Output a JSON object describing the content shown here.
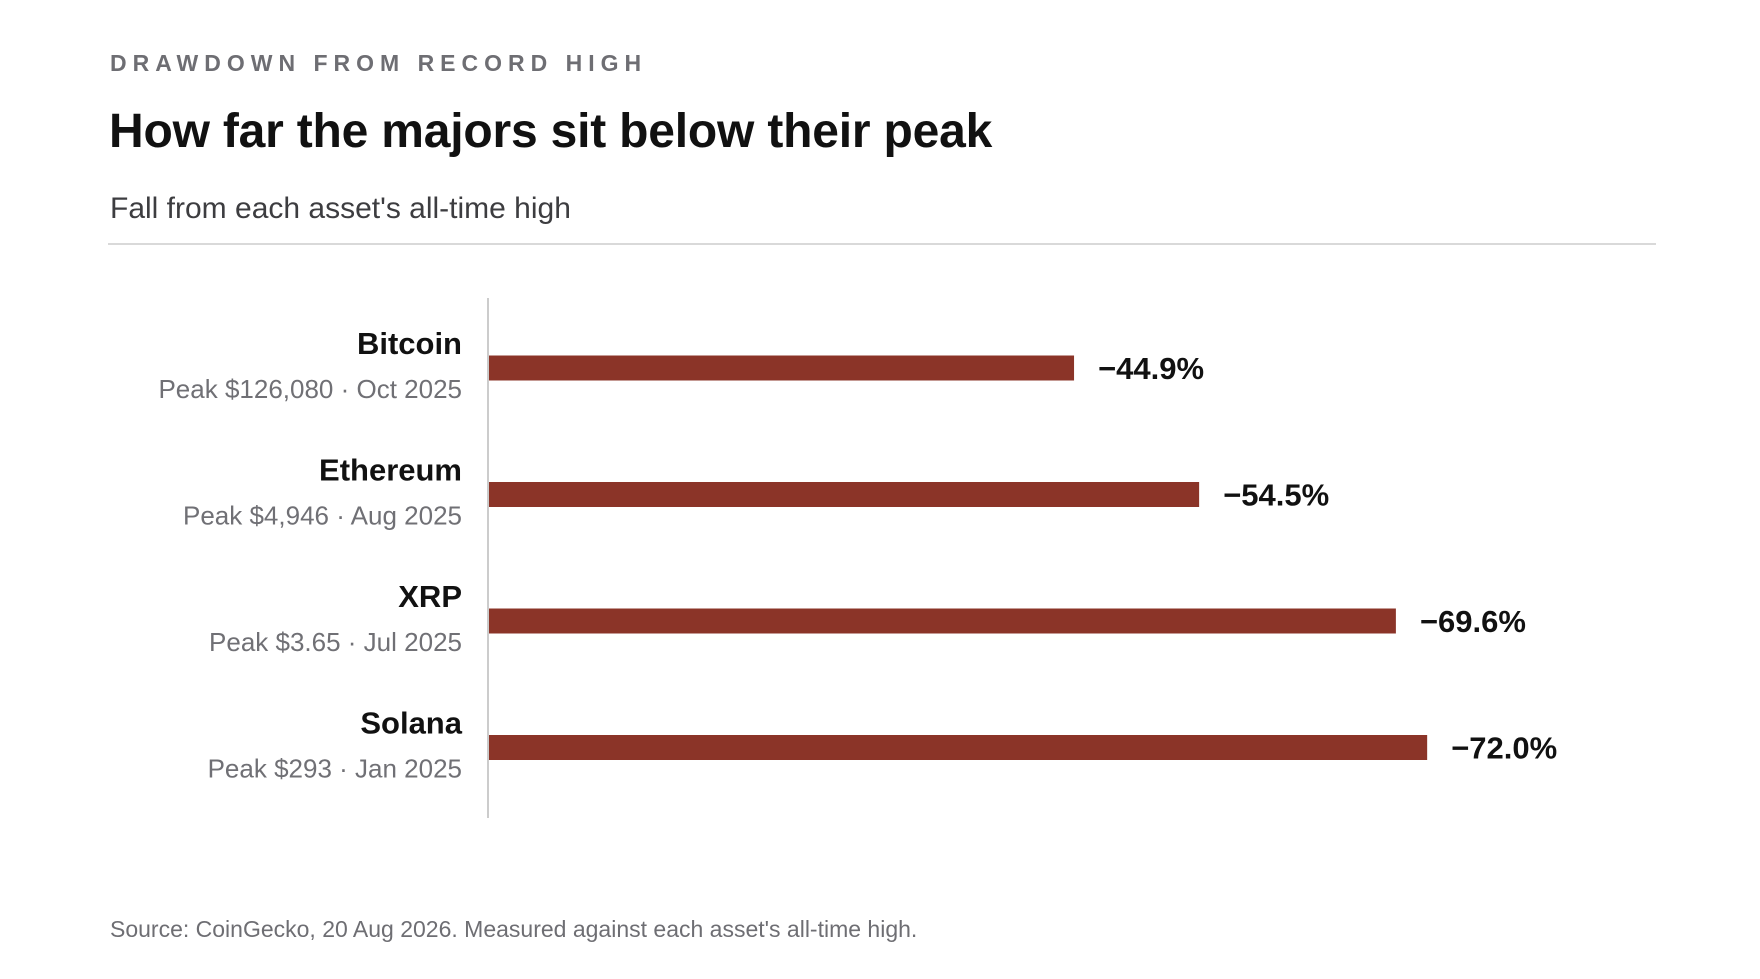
{
  "header": {
    "kicker": "DRAWDOWN FROM RECORD HIGH",
    "title": "How far the majors sit below their peak",
    "subtitle": "Fall from each asset's all-time high"
  },
  "footer": {
    "source": "Source: CoinGecko, 20 Aug 2026.  Measured against each asset's all-time high."
  },
  "colors": {
    "bar": "#8b3428",
    "axis": "#cccccc"
  },
  "chart_data": {
    "type": "bar",
    "orientation": "horizontal",
    "categories": [
      "Bitcoin",
      "Ethereum",
      "XRP",
      "Solana"
    ],
    "peak_labels": [
      "Peak $126,080",
      "Peak $4,946",
      "Peak $3.65",
      "Peak $293"
    ],
    "peak_dates": [
      "Oct 2025",
      "Aug 2025",
      "Jul 2025",
      "Jan 2025"
    ],
    "values": [
      -44.9,
      -54.5,
      -69.6,
      -72.0
    ],
    "value_labels": [
      "−44.9%",
      "−54.5%",
      "−69.6%",
      "−72.0%"
    ],
    "title": "How far the majors sit below their peak",
    "subtitle": "Fall from each asset's all-time high",
    "xlabel": "",
    "ylabel": "",
    "grid": false,
    "legend": "none"
  }
}
